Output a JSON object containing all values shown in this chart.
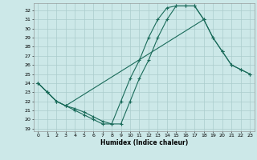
{
  "background_color": "#cce8e8",
  "grid_color": "#aacccc",
  "line_color": "#1a6b5a",
  "xlabel": "Humidex (Indice chaleur)",
  "xlim": [
    -0.5,
    23.5
  ],
  "ylim": [
    18.7,
    32.8
  ],
  "xticks": [
    0,
    1,
    2,
    3,
    4,
    5,
    6,
    7,
    8,
    9,
    10,
    11,
    12,
    13,
    14,
    15,
    16,
    17,
    18,
    19,
    20,
    21,
    22,
    23
  ],
  "yticks": [
    19,
    20,
    21,
    22,
    23,
    24,
    25,
    26,
    27,
    28,
    29,
    30,
    31,
    32
  ],
  "curve1_x": [
    0,
    1,
    2,
    3,
    4,
    5,
    6,
    7,
    8,
    9,
    10,
    11,
    12,
    13,
    14,
    15,
    16,
    17,
    18
  ],
  "curve1_y": [
    24,
    23,
    22,
    21.5,
    21,
    20.5,
    20,
    19.5,
    19.5,
    19.5,
    22,
    24.5,
    26.5,
    29,
    31,
    32.5,
    32.5,
    32.5,
    31
  ],
  "curve2_x": [
    0,
    1,
    2,
    3,
    4,
    5,
    6,
    7,
    8,
    9,
    10,
    11,
    12,
    13,
    14,
    15,
    16,
    17,
    18,
    19,
    20,
    21,
    22,
    23
  ],
  "curve2_y": [
    24,
    23,
    22,
    21.5,
    21.2,
    20.8,
    20.3,
    19.8,
    19.5,
    22,
    24.5,
    26.5,
    29,
    31,
    32.3,
    32.5,
    32.5,
    32.5,
    31,
    29,
    27.5,
    26,
    25.5,
    25
  ],
  "curve3_x": [
    0,
    1,
    2,
    3,
    18,
    19,
    20,
    21,
    22,
    23
  ],
  "curve3_y": [
    24,
    23,
    22,
    21.5,
    31,
    29,
    27.5,
    26,
    25.5,
    25
  ]
}
